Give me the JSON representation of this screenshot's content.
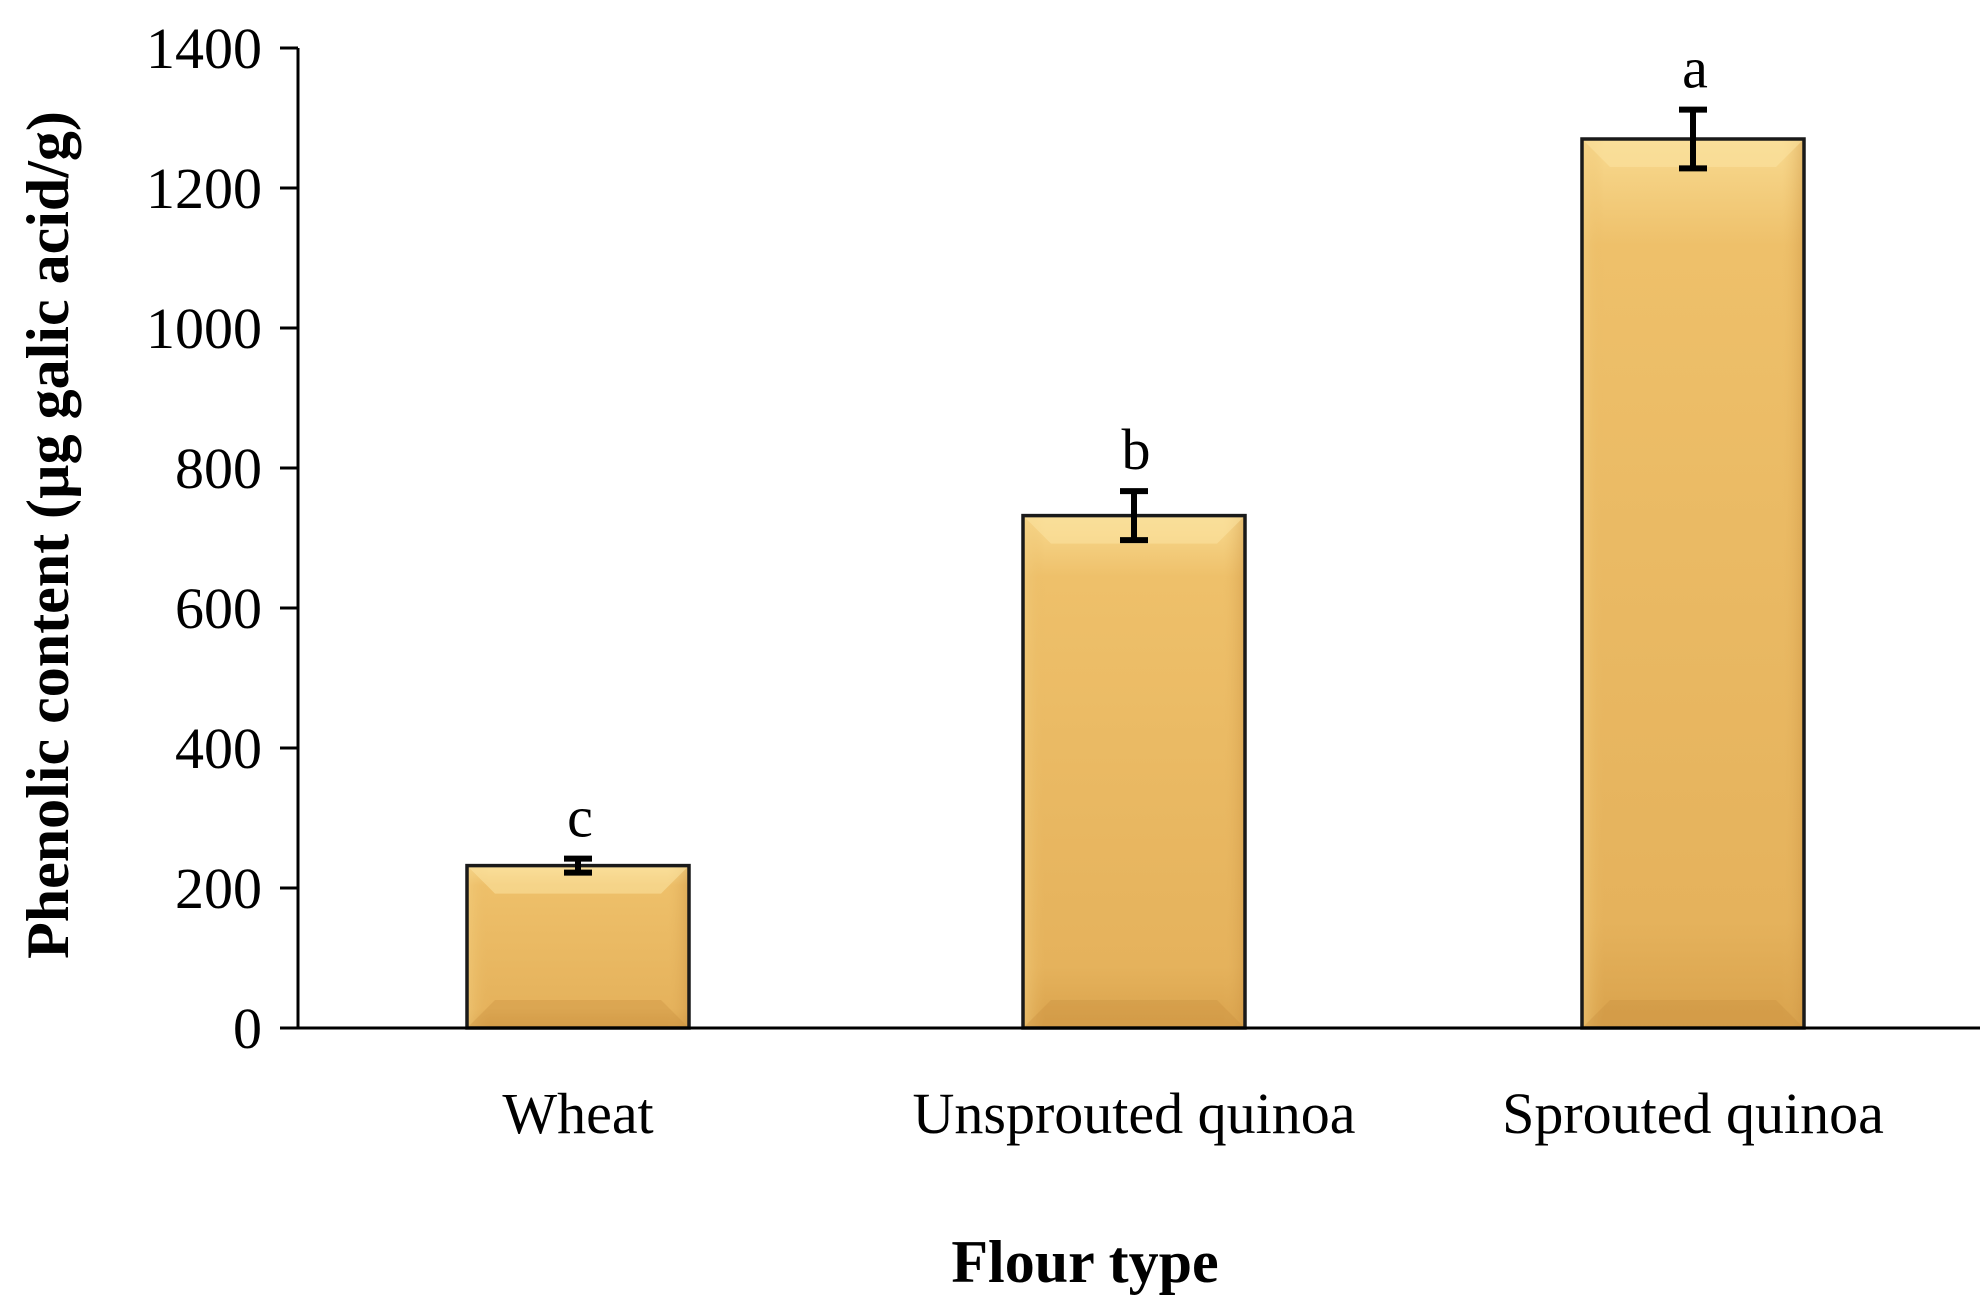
{
  "chart_data": {
    "type": "bar",
    "categories": [
      "Wheat",
      "Unsprouted quinoa",
      "Sprouted quinoa"
    ],
    "values": [
      232,
      732,
      1270
    ],
    "error": [
      10,
      35,
      42
    ],
    "significance_labels": [
      "c",
      "b",
      "a"
    ],
    "xlabel": "Flour type",
    "ylabel": "Phenolic content (µg galic acid/g)",
    "ylim": [
      0,
      1400
    ],
    "yticks": [
      "0",
      "200",
      "400",
      "600",
      "800",
      "1000",
      "1200",
      "1400"
    ],
    "ytick_values": [
      0,
      200,
      400,
      600,
      800,
      1000,
      1200,
      1400
    ],
    "grid": false,
    "legend": "none",
    "colors": {
      "bar_fill": "#E7B45F",
      "bar_highlight": "#F6D488",
      "bar_shadow": "#CF9A45",
      "bar_outline": "#1a1a1a",
      "axis": "#000000"
    }
  }
}
